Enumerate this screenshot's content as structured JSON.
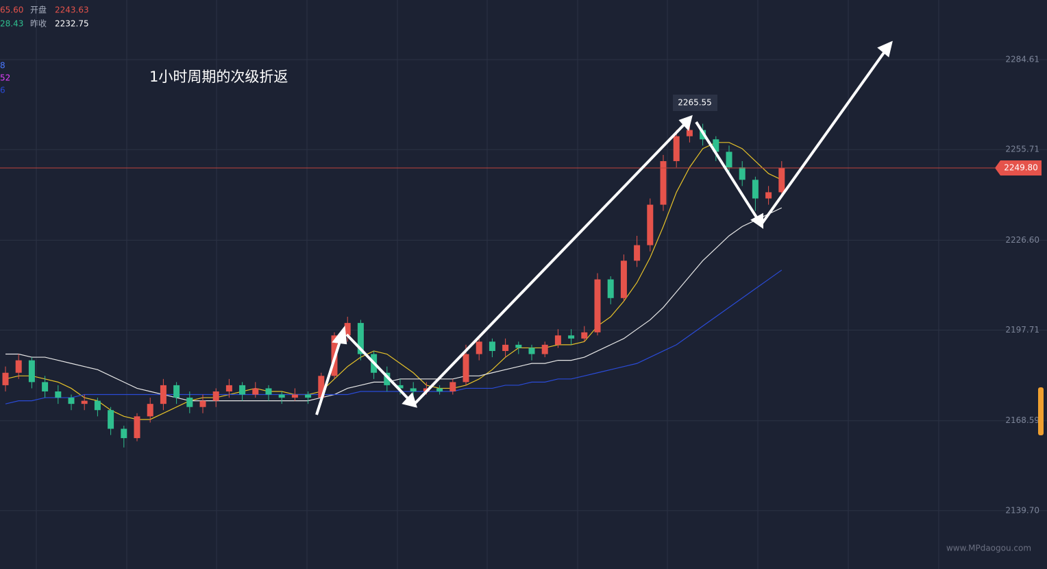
{
  "chart_data": {
    "type": "candlestick",
    "header": {
      "row1_value": "65.60",
      "open_label": "开盘",
      "open_value": "2243.63",
      "row2_value": "28.43",
      "prev_close_label": "昨收",
      "prev_close_value": "2232.75",
      "ma_values": [
        "8",
        "52",
        "6"
      ]
    },
    "annotation": "1小时周期的次级折返",
    "watermark": "www.MPdaogou.com",
    "up_color": "#e5534b",
    "down_color": "#2fbf8f",
    "open": [
      2180,
      2184,
      2188,
      2181,
      2178,
      2176,
      2174,
      2175,
      2172,
      2166,
      2163,
      2170,
      2174,
      2180,
      2176,
      2173,
      2175,
      2178,
      2180,
      2177,
      2179,
      2177,
      2176,
      2177,
      2176,
      2183,
      2196,
      2200,
      2190,
      2184,
      2180,
      2179,
      2178,
      2179,
      2178,
      2181,
      2190,
      2194,
      2191,
      2193,
      2192,
      2190,
      2193,
      2196,
      2195,
      2197,
      2214,
      2208,
      2220,
      2225,
      2238,
      2252,
      2260,
      2262,
      2259,
      2255,
      2250,
      2246,
      2240,
      2242
    ],
    "high": [
      2186,
      2190,
      2189,
      2183,
      2180,
      2177,
      2177,
      2176,
      2173,
      2167,
      2171,
      2176,
      2182,
      2181,
      2178,
      2177,
      2179,
      2182,
      2181,
      2181,
      2180,
      2178,
      2179,
      2178,
      2184,
      2197,
      2202,
      2201,
      2191,
      2186,
      2182,
      2181,
      2181,
      2180,
      2182,
      2193,
      2196,
      2195,
      2195,
      2194,
      2193,
      2194,
      2198,
      2198,
      2199,
      2216,
      2215,
      2222,
      2228,
      2240,
      2254,
      2262,
      2265.55,
      2264,
      2260,
      2257,
      2252,
      2247,
      2244,
      2252
    ],
    "low": [
      2178,
      2182,
      2179,
      2176,
      2174,
      2172,
      2172,
      2170,
      2164,
      2160,
      2162,
      2168,
      2172,
      2174,
      2171,
      2171,
      2173,
      2176,
      2175,
      2176,
      2175,
      2174,
      2175,
      2174,
      2175,
      2182,
      2194,
      2188,
      2182,
      2178,
      2177,
      2176,
      2177,
      2177,
      2177,
      2180,
      2188,
      2189,
      2189,
      2190,
      2188,
      2189,
      2192,
      2193,
      2194,
      2196,
      2206,
      2207,
      2218,
      2223,
      2236,
      2250,
      2258,
      2257,
      2252,
      2248,
      2244,
      2236,
      2238,
      2241
    ],
    "close": [
      2184,
      2188,
      2181,
      2178,
      2176,
      2174,
      2175,
      2172,
      2166,
      2163,
      2170,
      2174,
      2180,
      2176,
      2173,
      2175,
      2178,
      2180,
      2177,
      2179,
      2177,
      2176,
      2177,
      2176,
      2183,
      2196,
      2200,
      2190,
      2184,
      2180,
      2179,
      2178,
      2179,
      2178,
      2181,
      2190,
      2194,
      2191,
      2193,
      2192,
      2190,
      2193,
      2196,
      2195,
      2197,
      2214,
      2208,
      2220,
      2225,
      2238,
      2252,
      2260,
      2262,
      2259,
      2255,
      2250,
      2246,
      2240,
      2242,
      2249.8
    ],
    "series": [
      {
        "color": "#e6c229",
        "values": [
          2182,
          2183,
          2183,
          2182,
          2181,
          2179,
          2176,
          2175,
          2172,
          2170,
          2169,
          2169,
          2171,
          2173,
          2175,
          2176,
          2176,
          2177,
          2178,
          2179,
          2178,
          2178,
          2177,
          2177,
          2178,
          2182,
          2186,
          2189,
          2191,
          2190,
          2187,
          2184,
          2180,
          2179,
          2179,
          2180,
          2182,
          2185,
          2189,
          2192,
          2192,
          2192,
          2193,
          2193,
          2194,
          2199,
          2202,
          2207,
          2213,
          2221,
          2231,
          2242,
          2250,
          2256,
          2258,
          2258,
          2256,
          2252,
          2248,
          2246
        ]
      },
      {
        "color": "#e8e8e8",
        "values": [
          2190,
          2190,
          2189,
          2189,
          2188,
          2187,
          2186,
          2185,
          2183,
          2181,
          2179,
          2178,
          2177,
          2176,
          2175,
          2175,
          2175,
          2175,
          2175,
          2175,
          2175,
          2175,
          2175,
          2175,
          2176,
          2177,
          2179,
          2180,
          2181,
          2181,
          2182,
          2182,
          2182,
          2182,
          2182,
          2183,
          2183,
          2184,
          2185,
          2186,
          2187,
          2187,
          2188,
          2188,
          2189,
          2191,
          2193,
          2195,
          2198,
          2201,
          2205,
          2210,
          2215,
          2220,
          2224,
          2228,
          2231,
          2233,
          2235,
          2237
        ]
      },
      {
        "color": "#2a4bd7",
        "values": [
          2174,
          2175,
          2175,
          2176,
          2176,
          2176,
          2177,
          2177,
          2177,
          2177,
          2177,
          2177,
          2177,
          2177,
          2177,
          2177,
          2177,
          2177,
          2177,
          2177,
          2177,
          2177,
          2177,
          2177,
          2177,
          2177,
          2177,
          2178,
          2178,
          2178,
          2178,
          2178,
          2178,
          2178,
          2178,
          2179,
          2179,
          2179,
          2180,
          2180,
          2181,
          2181,
          2182,
          2182,
          2183,
          2184,
          2185,
          2186,
          2187,
          2189,
          2191,
          2193,
          2196,
          2199,
          2202,
          2205,
          2208,
          2211,
          2214,
          2217
        ]
      }
    ],
    "last_price": {
      "value": 2249.8,
      "label": "2249.80"
    },
    "ylim": [
      2120.95,
      2303.77
    ],
    "yticks": [
      2284.61,
      2255.71,
      {
        "value": 2226.6,
        "label": "2226.60"
      },
      2197.71,
      2168.59,
      {
        "value": 2139.7,
        "label": "2139.70"
      }
    ],
    "grid": true
  }
}
